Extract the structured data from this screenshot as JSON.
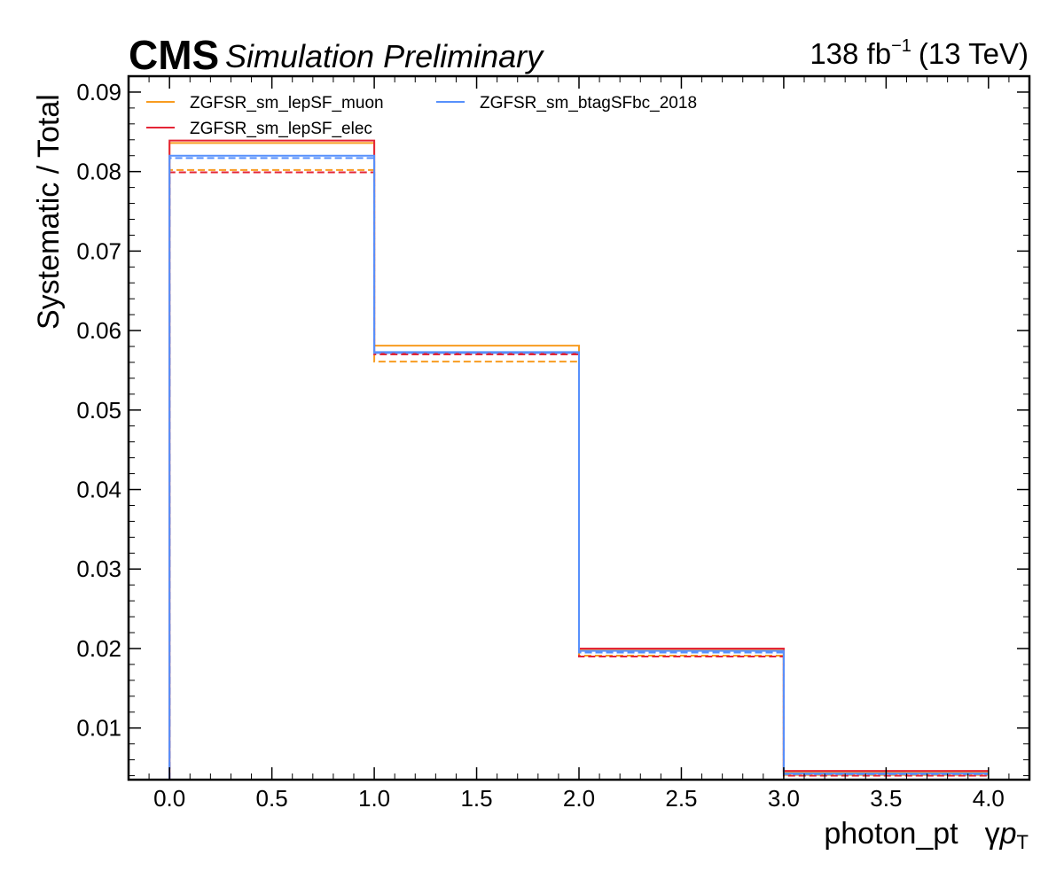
{
  "chart_data": {
    "type": "line",
    "style": "step-histogram",
    "header": {
      "experiment": "CMS",
      "extra": "Simulation Preliminary",
      "lumi_value": "138 fb",
      "lumi_exponent": "−1",
      "energy": "(13 TeV)"
    },
    "xlabel": "photon_pt",
    "xlabel_symbol": "γ",
    "xlabel_var": "p",
    "xlabel_sub": "T",
    "ylabel": "Systematic / Total",
    "xlim": [
      -0.2,
      4.2
    ],
    "ylim": [
      0.0035,
      0.092
    ],
    "x_ticks": [
      "0.0",
      "0.5",
      "1.0",
      "1.5",
      "2.0",
      "2.5",
      "3.0",
      "3.5",
      "4.0"
    ],
    "y_ticks": [
      "0.01",
      "0.02",
      "0.03",
      "0.04",
      "0.05",
      "0.06",
      "0.07",
      "0.08",
      "0.09"
    ],
    "bin_edges": [
      0,
      1,
      2,
      3,
      4
    ],
    "legend_position": "top-left",
    "legend_columns": 2,
    "series": [
      {
        "name": "ZGFSR_sm_lepSF_muon",
        "color": "#f89c20",
        "up": [
          0.0836,
          0.0581,
          0.0199,
          0.0045
        ],
        "down": [
          0.0802,
          0.0561,
          0.0191,
          0.0041
        ]
      },
      {
        "name": "ZGFSR_sm_lepSF_elec",
        "color": "#e42536",
        "up": [
          0.0839,
          0.0572,
          0.02,
          0.0046
        ],
        "down": [
          0.0799,
          0.057,
          0.019,
          0.004
        ]
      },
      {
        "name": "ZGFSR_sm_btagSFbc_2018",
        "color": "#5790fc",
        "up": [
          0.082,
          0.0573,
          0.0197,
          0.0043
        ],
        "down": [
          0.0817,
          0.0572,
          0.0195,
          0.0042
        ]
      }
    ]
  }
}
